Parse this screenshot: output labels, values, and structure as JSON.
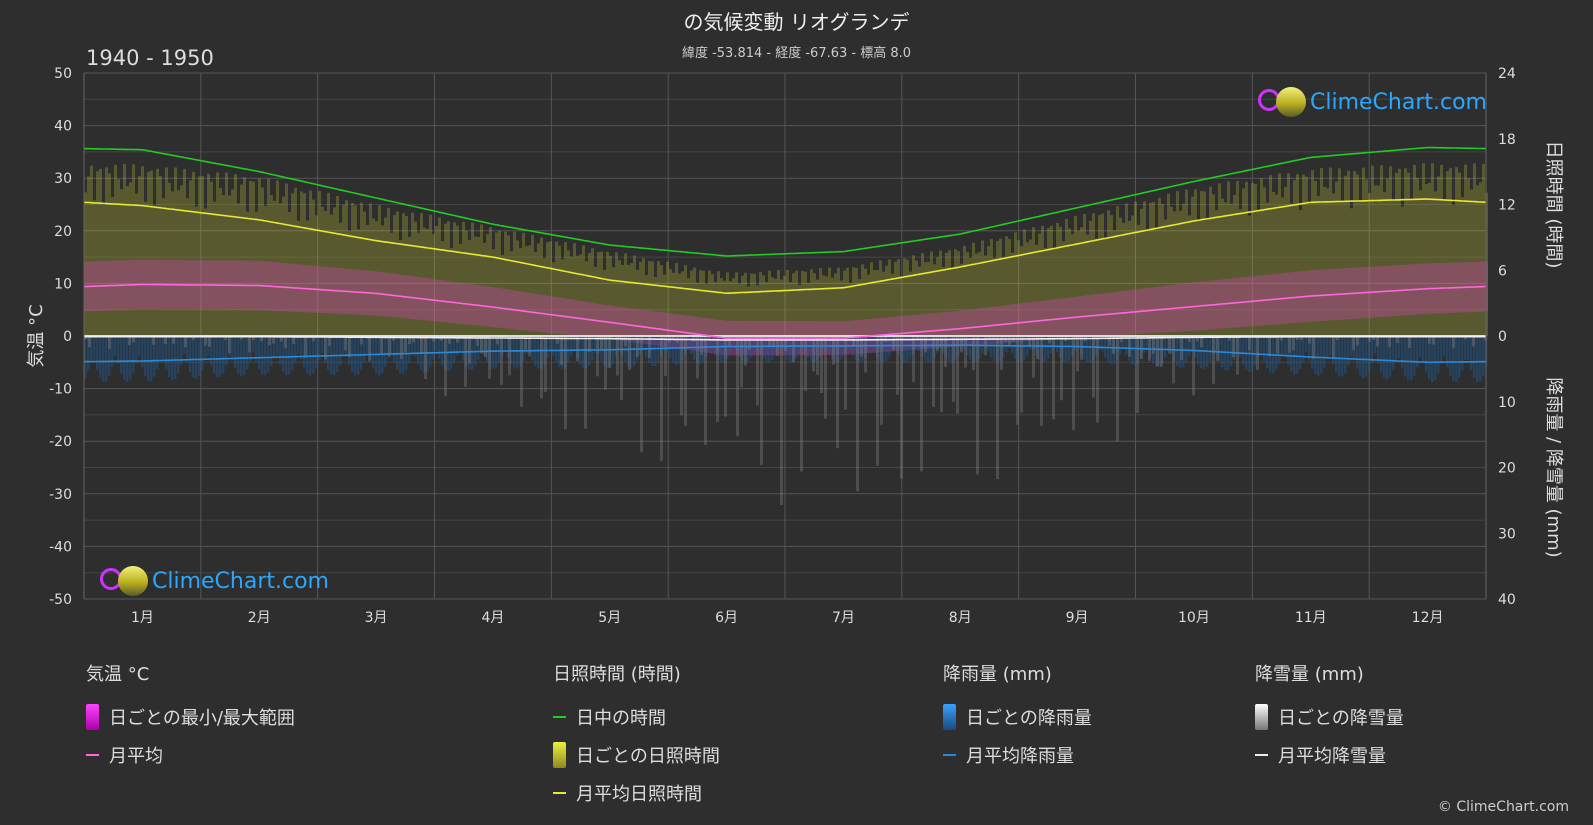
{
  "header": {
    "title": "の気候変動 リオグランデ",
    "subtitle": "緯度 -53.814 - 経度 -67.63 - 標高 8.0",
    "years": "1940 - 1950"
  },
  "axes": {
    "left_label": "気温 °C",
    "right_top_label": "日照時間 (時間)",
    "right_bottom_label": "降雨量 / 降雪量 (mm)",
    "left_ticks": [
      "50",
      "40",
      "30",
      "20",
      "10",
      "0",
      "-10",
      "-20",
      "-30",
      "-40",
      "-50"
    ],
    "right_top_ticks": [
      "24",
      "18",
      "12",
      "6",
      "0"
    ],
    "right_bottom_ticks": [
      "10",
      "20",
      "30",
      "40"
    ],
    "months": [
      "1月",
      "2月",
      "3月",
      "4月",
      "5月",
      "6月",
      "7月",
      "8月",
      "9月",
      "10月",
      "11月",
      "12月"
    ]
  },
  "chart_data": {
    "type": "line",
    "months": [
      "1月",
      "2月",
      "3月",
      "4月",
      "5月",
      "6月",
      "7月",
      "8月",
      "9月",
      "10月",
      "11月",
      "12月"
    ],
    "temp_ylim": [
      -50,
      50
    ],
    "sun_ylim": [
      0,
      24
    ],
    "precip_ylim": [
      0,
      40
    ],
    "series": [
      {
        "name": "日中の時間",
        "unit": "時間",
        "color": "#22cc22",
        "values": [
          17.0,
          15.0,
          12.6,
          10.2,
          8.3,
          7.3,
          7.7,
          9.3,
          11.7,
          14.1,
          16.3,
          17.2
        ]
      },
      {
        "name": "月平均日照時間",
        "unit": "時間",
        "color": "#e8e830",
        "values": [
          11.9,
          10.6,
          8.7,
          7.2,
          5.1,
          3.9,
          4.4,
          6.3,
          8.4,
          10.5,
          12.2,
          12.5
        ]
      },
      {
        "name": "月平均",
        "unit": "°C",
        "color": "#ff66dd",
        "values": [
          9.8,
          9.6,
          8.1,
          5.5,
          2.6,
          -0.4,
          -0.4,
          1.4,
          3.6,
          5.6,
          7.6,
          9.0
        ]
      },
      {
        "name": "月平均降雨量",
        "unit": "mm",
        "color": "#2b8ad8",
        "values": [
          3.8,
          3.3,
          2.8,
          2.3,
          2.1,
          1.6,
          1.5,
          1.4,
          1.6,
          2.2,
          3.2,
          4.0
        ]
      },
      {
        "name": "月平均降雪量",
        "unit": "mm",
        "color": "#eeeeee",
        "values": [
          0.1,
          0.1,
          0.2,
          0.3,
          0.4,
          0.6,
          0.6,
          0.5,
          0.4,
          0.2,
          0.1,
          0.1
        ]
      }
    ],
    "daily_temp_range": {
      "name": "日ごとの最小/最大範囲",
      "unit": "°C",
      "max": [
        14.5,
        14.3,
        12.3,
        9.3,
        5.8,
        2.9,
        2.8,
        4.8,
        7.5,
        10.2,
        12.5,
        13.8
      ],
      "min": [
        5.1,
        4.9,
        3.9,
        1.7,
        -0.6,
        -3.7,
        -3.6,
        -2.0,
        -0.3,
        1.0,
        2.7,
        4.2
      ]
    },
    "daily_sunshine_max": {
      "name": "日ごとの日照時間",
      "unit": "時間",
      "values": [
        15.7,
        14.6,
        12.0,
        10.0,
        7.8,
        5.8,
        6.3,
        8.2,
        11.0,
        13.6,
        15.3,
        15.8
      ]
    },
    "daily_precip_peak": {
      "name": "日ごとの降雨量",
      "unit": "mm",
      "values": [
        7,
        6,
        6,
        5,
        5,
        4,
        4,
        4,
        4,
        5,
        6,
        7
      ]
    },
    "daily_snow_peak": {
      "name": "日ごとの降雪量",
      "unit": "mm",
      "values": [
        2,
        3,
        5,
        12,
        18,
        24,
        28,
        24,
        20,
        10,
        4,
        2
      ]
    }
  },
  "legend": {
    "groups": [
      {
        "head": "気温 °C",
        "items": [
          {
            "label": "日ごとの最小/最大範囲",
            "kind": "box",
            "color": "#dd22dd"
          },
          {
            "label": "月平均",
            "kind": "line",
            "color": "#ff66dd"
          }
        ]
      },
      {
        "head": "日照時間 (時間)",
        "items": [
          {
            "label": "日中の時間",
            "kind": "line",
            "color": "#22cc22"
          },
          {
            "label": "日ごとの日照時間",
            "kind": "box",
            "color": "#d8d830"
          },
          {
            "label": "月平均日照時間",
            "kind": "line",
            "color": "#e8e830"
          }
        ]
      },
      {
        "head": "降雨量 (mm)",
        "items": [
          {
            "label": "日ごとの降雨量",
            "kind": "box",
            "color": "#2b8ad8"
          },
          {
            "label": "月平均降雨量",
            "kind": "line",
            "color": "#2b8ad8"
          }
        ]
      },
      {
        "head": "降雪量 (mm)",
        "items": [
          {
            "label": "日ごとの降雪量",
            "kind": "box",
            "color": "#dddddd"
          },
          {
            "label": "月平均降雪量",
            "kind": "line",
            "color": "#eeeeee"
          }
        ]
      }
    ]
  },
  "branding": {
    "logo_text": "ClimeChart.com",
    "copyright": "© ClimeChart.com"
  }
}
